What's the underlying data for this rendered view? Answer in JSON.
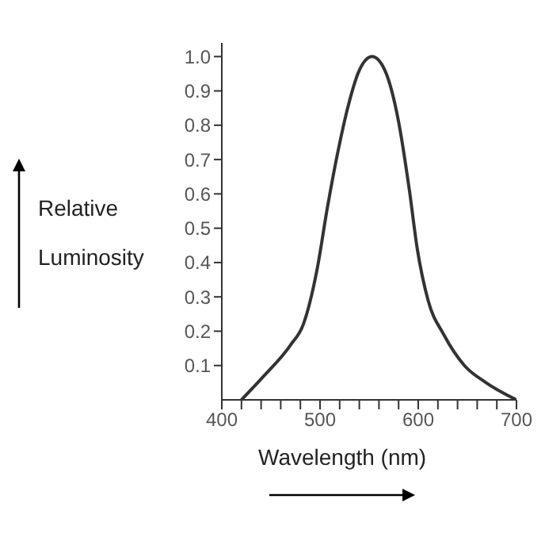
{
  "chart_data": {
    "type": "line",
    "xlabel": "Wavelength (nm)",
    "ylabel": "Relative Luminosity",
    "x": [
      420,
      443,
      470,
      483,
      497,
      507.5,
      518,
      529,
      540,
      553,
      566,
      580,
      591,
      599,
      610,
      626,
      647,
      669,
      700
    ],
    "series": [
      {
        "color": "#333333",
        "values": [
          0,
          0.07,
          0.16,
          0.22,
          0.38,
          0.56,
          0.72,
          0.86,
          0.96,
          1.0,
          0.96,
          0.81,
          0.61,
          0.44,
          0.29,
          0.19,
          0.1,
          0.05,
          0
        ]
      }
    ],
    "xlim": [
      400,
      700
    ],
    "xticks": [
      400,
      {
        "value": 420,
        "label": null
      },
      {
        "value": 440,
        "label": null
      },
      {
        "value": 460,
        "label": null
      },
      {
        "value": 480,
        "label": null
      },
      500,
      {
        "value": 520,
        "label": null
      },
      {
        "value": 540,
        "label": null
      },
      {
        "value": 560,
        "label": null
      },
      {
        "value": 580,
        "label": null
      },
      600,
      {
        "value": 620,
        "label": null
      },
      {
        "value": 640,
        "label": null
      },
      {
        "value": 660,
        "label": null
      },
      {
        "value": 680,
        "label": null
      },
      700
    ],
    "ylim": [
      0,
      1.04
    ],
    "yticks": [
      {
        "value": 0.1,
        "label": "0.1"
      },
      {
        "value": 0.2,
        "label": "0.2"
      },
      {
        "value": 0.3,
        "label": "0.3"
      },
      {
        "value": 0.4,
        "label": "0.4"
      },
      {
        "value": 0.5,
        "label": "0.5"
      },
      {
        "value": 0.6,
        "label": "0.6"
      },
      {
        "value": 0.7,
        "label": "0.7"
      },
      {
        "value": 0.8,
        "label": "0.8"
      },
      {
        "value": 0.9,
        "label": "0.9"
      },
      {
        "value": 1.0,
        "label": "1.0"
      }
    ],
    "grid": false,
    "legend": false,
    "marker": "none",
    "line_style": "solid"
  }
}
